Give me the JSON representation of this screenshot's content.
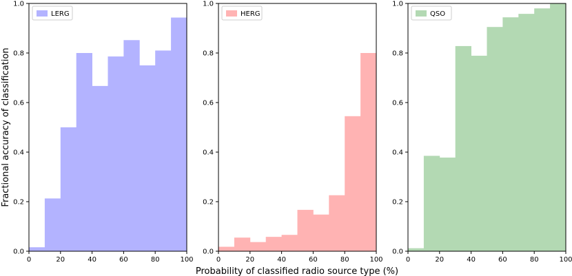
{
  "figure": {
    "ylabel": "Fractional accuracy of classification",
    "xlabel": "Probability of classified radio source type (%)"
  },
  "chart_data": [
    {
      "type": "bar",
      "name": "LERG",
      "legend": "LERG",
      "color": "#b3b3ff",
      "bin_edges": [
        0,
        10,
        20,
        30,
        40,
        50,
        60,
        70,
        80,
        90,
        100
      ],
      "values": [
        0.016,
        0.213,
        0.5,
        0.8,
        0.667,
        0.786,
        0.852,
        0.75,
        0.81,
        0.943
      ],
      "xlim": [
        0,
        100
      ],
      "ylim": [
        0,
        1.0
      ],
      "xticks": [
        "0",
        "20",
        "40",
        "60",
        "80",
        "100"
      ],
      "yticks": [
        "0.0",
        "0.2",
        "0.4",
        "0.6",
        "0.8",
        "1.0"
      ],
      "legend_position": "top-left"
    },
    {
      "type": "bar",
      "name": "HERG",
      "legend": "HERG",
      "color": "#ffb3b3",
      "bin_edges": [
        0,
        10,
        20,
        30,
        40,
        50,
        60,
        70,
        80,
        90,
        100
      ],
      "values": [
        0.018,
        0.055,
        0.037,
        0.058,
        0.066,
        0.167,
        0.148,
        0.226,
        0.545,
        0.8
      ],
      "xlim": [
        0,
        100
      ],
      "ylim": [
        0,
        1.0
      ],
      "xticks": [
        "0",
        "20",
        "40",
        "60",
        "80",
        "100"
      ],
      "yticks": [
        "0.0",
        "0.2",
        "0.4",
        "0.6",
        "0.8",
        "1.0"
      ],
      "legend_position": "top-left"
    },
    {
      "type": "bar",
      "name": "QSO",
      "legend": "QSO",
      "color": "#b3d9b3",
      "bin_edges": [
        0,
        10,
        20,
        30,
        40,
        50,
        60,
        70,
        80,
        90,
        100
      ],
      "values": [
        0.012,
        0.385,
        0.378,
        0.828,
        0.789,
        0.905,
        0.944,
        0.958,
        0.98,
        1.0
      ],
      "xlim": [
        0,
        100
      ],
      "ylim": [
        0,
        1.0
      ],
      "xticks": [
        "0",
        "20",
        "40",
        "60",
        "80",
        "100"
      ],
      "yticks": [
        "0.0",
        "0.2",
        "0.4",
        "0.6",
        "0.8",
        "1.0"
      ],
      "legend_position": "top-left"
    }
  ]
}
